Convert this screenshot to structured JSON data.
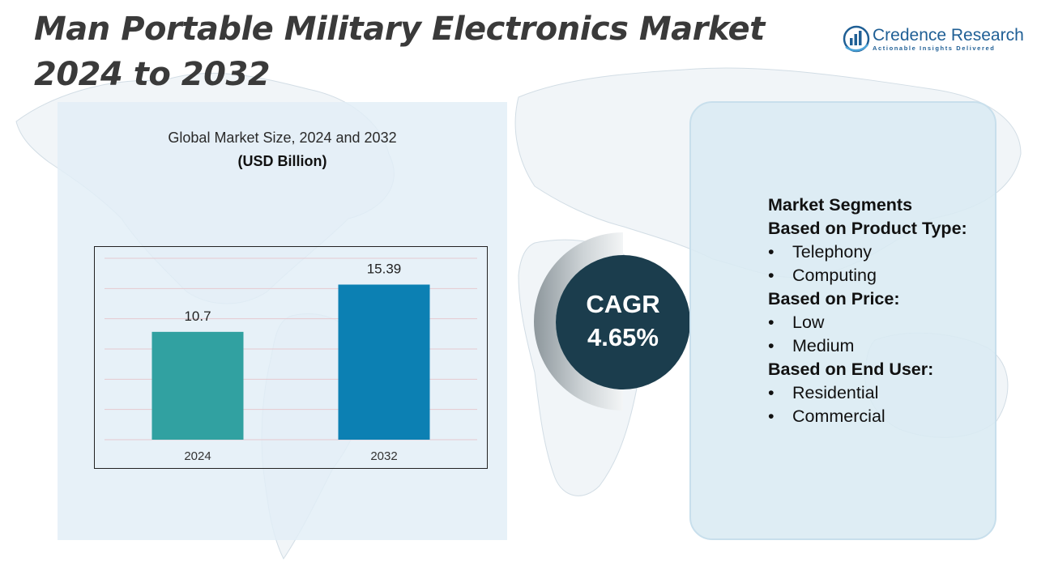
{
  "header": {
    "title": "Man Portable Military Electronics Market 2024 to 2032"
  },
  "logo": {
    "name": "Credence Research",
    "tagline": "Actionable Insights Delivered"
  },
  "chart_data": {
    "type": "bar",
    "title": "Global Market Size, 2024 and 2032",
    "unit_label": "(USD Billion)",
    "categories": [
      "2024",
      "2032"
    ],
    "values": [
      10.7,
      15.39
    ],
    "data_labels": [
      "10.7",
      "15.39"
    ],
    "colors": [
      "#31a1a1",
      "#0c80b3"
    ],
    "ylim": [
      0,
      18
    ],
    "grid": true,
    "legend": "none"
  },
  "cagr": {
    "label": "CAGR",
    "value": "4.65%"
  },
  "segments": {
    "title": "Market Segments",
    "groups": [
      {
        "heading": "Based on Product Type:",
        "items": [
          "Telephony",
          "Computing"
        ]
      },
      {
        "heading": "Based on Price:",
        "items": [
          "Low",
          "Medium"
        ]
      },
      {
        "heading": "Based on End User:",
        "items": [
          "Residential",
          "Commercial"
        ]
      }
    ]
  },
  "colors": {
    "title_text": "#3a3a3a",
    "panel_bg": "#e2eef6",
    "cagr_circle": "#1b3d4d",
    "brand": "#1f5f95"
  }
}
